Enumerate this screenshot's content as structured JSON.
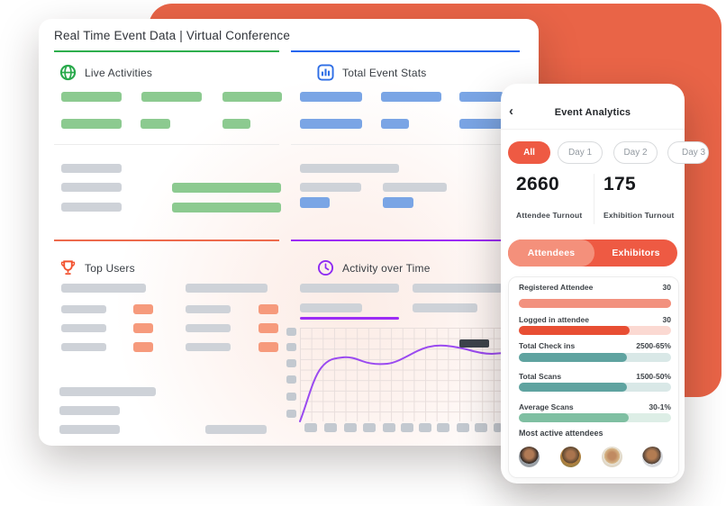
{
  "colors": {
    "accent_orange": "#e96447",
    "pill_orange": "#ee5a43",
    "green_bar": "#8cca90",
    "blue_bar": "#7aa5e5",
    "green_line": "#2eae4d",
    "blue_line": "#2366ef",
    "orange_line": "#ed6a4c",
    "purple_line": "#9c2cf5",
    "teal_fill": "#5fa3a0",
    "red_fill": "#e84e33",
    "salmon_fill": "#f2917e",
    "mint_fill": "#7fbfa2"
  },
  "dashboard": {
    "title": "Real Time Event Data | Virtual Conference",
    "live_activities": {
      "label": "Live Activities"
    },
    "total_event_stats": {
      "label": "Total Event Stats"
    },
    "top_users": {
      "label": "Top Users"
    },
    "activity": {
      "label": "Activity over Time"
    }
  },
  "chart_data": {
    "type": "line",
    "title": "Activity over Time",
    "xlabel": "",
    "ylabel": "",
    "x_ticks": "11 unlabeled placeholder ticks",
    "y_ticks": "6 unlabeled placeholder ticks",
    "grid": true,
    "legend": false,
    "series": [
      {
        "name": "activity",
        "points_norm": [
          [
            0,
            0.0
          ],
          [
            0.09,
            0.42
          ],
          [
            0.19,
            0.68
          ],
          [
            0.29,
            0.68
          ],
          [
            0.38,
            0.61
          ],
          [
            0.46,
            0.62
          ],
          [
            0.57,
            0.75
          ],
          [
            0.7,
            0.81
          ],
          [
            0.78,
            0.8
          ],
          [
            0.93,
            0.72
          ],
          [
            1.0,
            0.73
          ]
        ]
      }
    ]
  },
  "mobile": {
    "back_icon": "‹",
    "title": "Event Analytics",
    "tabs": [
      "All",
      "Day 1",
      "Day 2",
      "Day 3"
    ],
    "active_tab": "All",
    "stats": [
      {
        "value": "2660",
        "label": "Attendee Turnout"
      },
      {
        "value": "175",
        "label": "Exhibition Turnout"
      }
    ],
    "toggle": {
      "selected": "Attendees",
      "options": [
        "Attendees",
        "Exhibitors"
      ]
    },
    "metrics": [
      {
        "label": "Registered Attendee",
        "value": "30",
        "fill": 100,
        "color": "#f2917e",
        "track": "#f2917e"
      },
      {
        "label": "Logged in attendee",
        "value": "30",
        "fill": 73,
        "color": "#e84e33",
        "track": "#fbd9d2"
      },
      {
        "label": "Total Check ins",
        "value": "2500-65%",
        "fill": 71,
        "color": "#5fa3a0",
        "track": "#d9e8e7"
      },
      {
        "label": "Total Scans",
        "value": "1500-50%",
        "fill": 71,
        "color": "#5fa3a0",
        "track": "#d9e8e7"
      },
      {
        "label": "Average Scans",
        "value": "30-1%",
        "fill": 72,
        "color": "#7fbfa2",
        "track": "#ddeee6"
      }
    ],
    "most_active_label": "Most active attendees",
    "avatar_count": 4
  }
}
